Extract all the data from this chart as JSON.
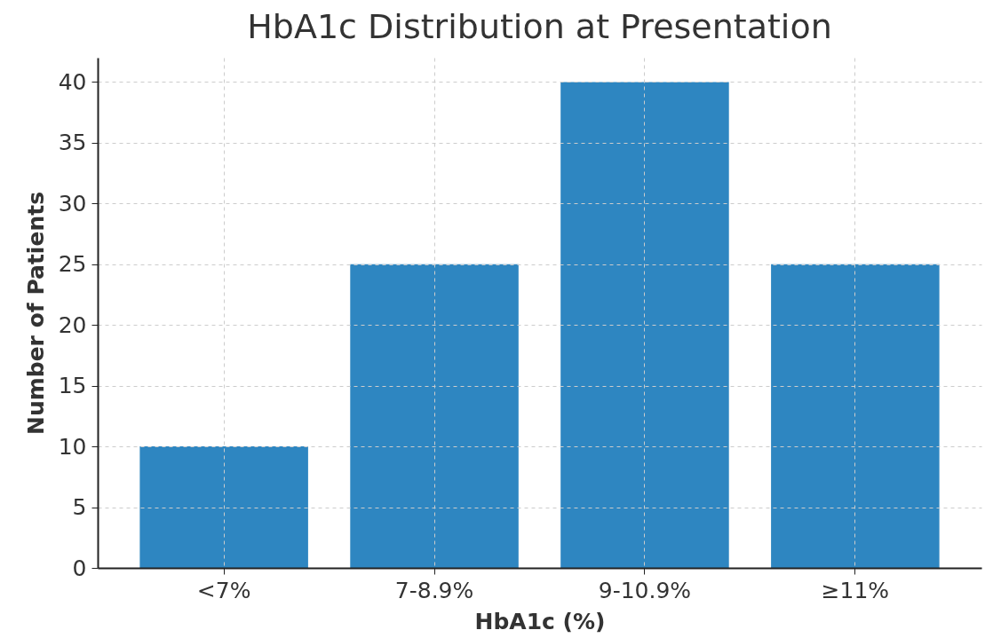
{
  "chart_data": {
    "type": "bar",
    "title": "HbA1c Distribution at Presentation",
    "xlabel": "HbA1c (%)",
    "ylabel": "Number of Patients",
    "categories": [
      "<7%",
      "7-8.9%",
      "9-10.9%",
      "≥11%"
    ],
    "values": [
      10,
      25,
      40,
      25
    ],
    "color": "#2e86c1",
    "ylim": [
      0,
      42
    ],
    "yticks": [
      0,
      5,
      10,
      15,
      20,
      25,
      30,
      35,
      40
    ],
    "grid": true
  }
}
